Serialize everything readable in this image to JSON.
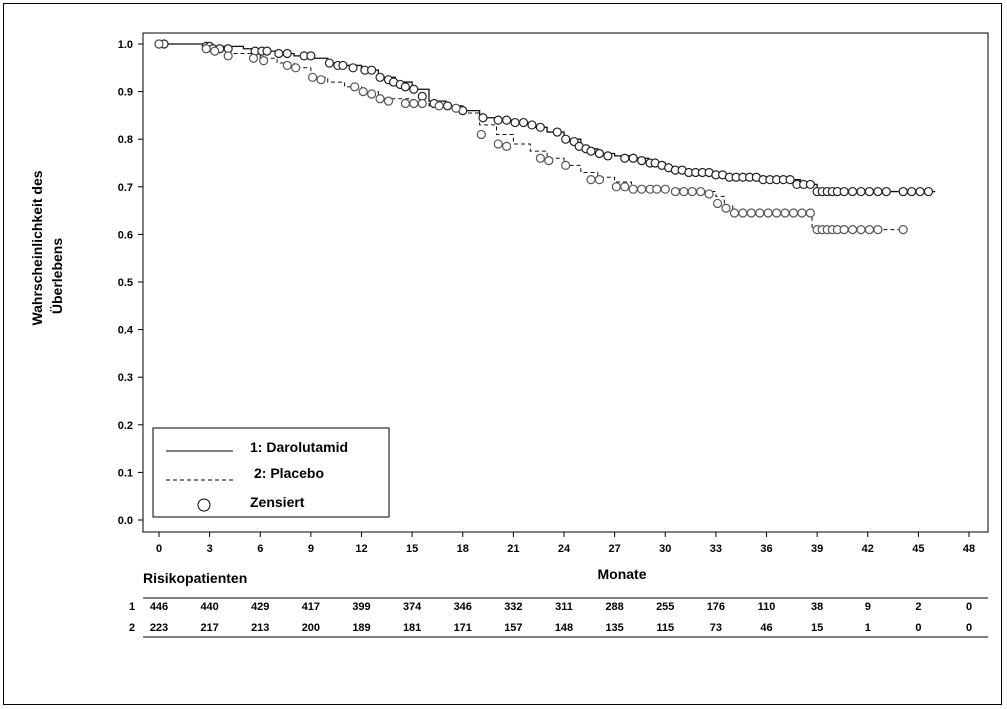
{
  "chart_data": {
    "type": "line",
    "ylabel_line1": "Wahrscheinlichkeit des",
    "ylabel_line2": "Überlebens",
    "xlabel": "Monate",
    "xlim": [
      0,
      48
    ],
    "ylim": [
      0,
      1
    ],
    "x_ticks": [
      0,
      3,
      6,
      9,
      12,
      15,
      18,
      21,
      24,
      27,
      30,
      33,
      36,
      39,
      42,
      45,
      48
    ],
    "y_ticks": [
      "0.0",
      "0.1",
      "0.2",
      "0.3",
      "0.4",
      "0.5",
      "0.6",
      "0.7",
      "0.8",
      "0.9",
      "1.0"
    ],
    "grid": false,
    "legend": {
      "placement": "bottom-left",
      "entries": [
        {
          "label": "1: Darolutamid",
          "style": "solid"
        },
        {
          "label": "2: Placebo",
          "style": "dashed"
        },
        {
          "label": "Zensiert",
          "style": "circle"
        }
      ]
    },
    "series": [
      {
        "name": "1: Darolutamid",
        "line_style": "solid",
        "x": [
          0,
          3,
          5,
          6,
          7,
          8,
          9,
          10,
          11,
          12,
          13,
          14,
          15,
          16,
          17,
          18,
          19,
          20,
          21,
          22,
          23,
          24,
          25,
          26,
          27,
          28,
          29,
          30,
          31,
          32,
          33,
          34,
          35,
          36,
          37,
          38,
          39,
          40,
          41,
          46
        ],
        "y": [
          1.0,
          0.995,
          0.99,
          0.985,
          0.98,
          0.975,
          0.97,
          0.96,
          0.955,
          0.945,
          0.93,
          0.92,
          0.905,
          0.88,
          0.87,
          0.86,
          0.845,
          0.84,
          0.835,
          0.825,
          0.815,
          0.8,
          0.78,
          0.77,
          0.765,
          0.76,
          0.75,
          0.74,
          0.73,
          0.73,
          0.725,
          0.72,
          0.72,
          0.715,
          0.715,
          0.705,
          0.69,
          0.69,
          0.69,
          0.69
        ],
        "censored_x": [
          0,
          0.3,
          2.8,
          3.0,
          3.2,
          3.6,
          4.1,
          5.7,
          6.1,
          6.4,
          7.1,
          7.6,
          8.6,
          9.0,
          10.1,
          10.6,
          10.9,
          11.5,
          12.2,
          12.6,
          13.1,
          13.6,
          13.9,
          14.3,
          14.6,
          15.1,
          15.6,
          16.3,
          17.1,
          18.0,
          19.2,
          20.1,
          20.6,
          21.1,
          21.6,
          22.1,
          22.6,
          23.6,
          24.1,
          24.6,
          24.9,
          25.3,
          25.6,
          26.1,
          26.6,
          27.6,
          28.1,
          28.6,
          29.1,
          29.4,
          29.8,
          30.2,
          30.6,
          31.0,
          31.4,
          31.8,
          32.2,
          32.6,
          33.0,
          33.4,
          33.8,
          34.2,
          34.6,
          35.0,
          35.4,
          35.8,
          36.2,
          36.6,
          37.0,
          37.4,
          37.8,
          38.2,
          38.6,
          39.0,
          39.3,
          39.6,
          39.9,
          40.2,
          40.6,
          41.1,
          41.6,
          42.1,
          42.6,
          43.1,
          44.1,
          44.6,
          45.1,
          45.6
        ],
        "censored_y": [
          1.0,
          1.0,
          0.995,
          0.995,
          0.99,
          0.99,
          0.99,
          0.985,
          0.985,
          0.985,
          0.98,
          0.98,
          0.975,
          0.975,
          0.96,
          0.955,
          0.955,
          0.95,
          0.945,
          0.945,
          0.93,
          0.925,
          0.92,
          0.915,
          0.91,
          0.905,
          0.89,
          0.875,
          0.87,
          0.86,
          0.845,
          0.84,
          0.84,
          0.835,
          0.835,
          0.83,
          0.825,
          0.815,
          0.8,
          0.795,
          0.785,
          0.78,
          0.775,
          0.77,
          0.765,
          0.76,
          0.76,
          0.755,
          0.75,
          0.75,
          0.745,
          0.74,
          0.735,
          0.735,
          0.73,
          0.73,
          0.73,
          0.73,
          0.725,
          0.725,
          0.72,
          0.72,
          0.72,
          0.72,
          0.72,
          0.715,
          0.715,
          0.715,
          0.715,
          0.715,
          0.705,
          0.705,
          0.705,
          0.69,
          0.69,
          0.69,
          0.69,
          0.69,
          0.69,
          0.69,
          0.69,
          0.69,
          0.69,
          0.69,
          0.69,
          0.69,
          0.69,
          0.69
        ]
      },
      {
        "name": "2: Placebo",
        "line_style": "dashed",
        "x": [
          0,
          3,
          4,
          6,
          7,
          8,
          9,
          10,
          11,
          12,
          13,
          15,
          16,
          17,
          18,
          19,
          20,
          21,
          22,
          23,
          24,
          25,
          26,
          27,
          28,
          29,
          30,
          31,
          32,
          33,
          33.5,
          34,
          35,
          36,
          37,
          38,
          38.7,
          39,
          40,
          41,
          44
        ],
        "y": [
          1.0,
          0.99,
          0.98,
          0.97,
          0.96,
          0.95,
          0.93,
          0.92,
          0.91,
          0.9,
          0.885,
          0.875,
          0.87,
          0.865,
          0.855,
          0.83,
          0.81,
          0.79,
          0.775,
          0.76,
          0.745,
          0.73,
          0.72,
          0.71,
          0.7,
          0.695,
          0.695,
          0.69,
          0.69,
          0.68,
          0.66,
          0.645,
          0.645,
          0.645,
          0.645,
          0.645,
          0.61,
          0.61,
          0.61,
          0.61,
          0.61
        ],
        "censored_x": [
          0,
          2.8,
          3.3,
          4.1,
          5.6,
          6.2,
          7.6,
          8.1,
          9.1,
          9.6,
          11.6,
          12.1,
          12.6,
          13.1,
          13.6,
          14.6,
          15.1,
          15.6,
          16.6,
          17.6,
          19.1,
          20.1,
          20.6,
          22.6,
          23.1,
          24.1,
          25.6,
          26.1,
          27.1,
          27.6,
          28.1,
          28.6,
          29.1,
          29.5,
          30.0,
          30.6,
          31.1,
          31.6,
          32.1,
          32.6,
          33.1,
          33.6,
          34.1,
          34.6,
          35.1,
          35.6,
          36.1,
          36.6,
          37.1,
          37.6,
          38.1,
          38.6,
          39.0,
          39.3,
          39.6,
          39.9,
          40.2,
          40.6,
          41.1,
          41.6,
          42.1,
          42.6,
          44.1
        ],
        "censored_y": [
          1.0,
          0.99,
          0.985,
          0.975,
          0.97,
          0.965,
          0.955,
          0.95,
          0.93,
          0.925,
          0.91,
          0.9,
          0.895,
          0.885,
          0.88,
          0.875,
          0.875,
          0.875,
          0.87,
          0.865,
          0.81,
          0.79,
          0.785,
          0.76,
          0.755,
          0.745,
          0.715,
          0.715,
          0.7,
          0.7,
          0.695,
          0.695,
          0.695,
          0.695,
          0.695,
          0.69,
          0.69,
          0.69,
          0.69,
          0.685,
          0.665,
          0.655,
          0.645,
          0.645,
          0.645,
          0.645,
          0.645,
          0.645,
          0.645,
          0.645,
          0.645,
          0.645,
          0.61,
          0.61,
          0.61,
          0.61,
          0.61,
          0.61,
          0.61,
          0.61,
          0.61,
          0.61,
          0.61
        ]
      }
    ],
    "risk_table": {
      "title": "Risikopatienten",
      "time_points": [
        0,
        3,
        6,
        9,
        12,
        15,
        18,
        21,
        24,
        27,
        30,
        33,
        36,
        39,
        42,
        45,
        48
      ],
      "rows": [
        {
          "label": "1",
          "values": [
            "446",
            "440",
            "429",
            "417",
            "399",
            "374",
            "346",
            "332",
            "311",
            "288",
            "255",
            "176",
            "110",
            "38",
            "9",
            "2",
            "0"
          ]
        },
        {
          "label": "2",
          "values": [
            "223",
            "217",
            "213",
            "200",
            "189",
            "181",
            "171",
            "157",
            "148",
            "135",
            "115",
            "73",
            "46",
            "15",
            "1",
            "0",
            "0"
          ]
        }
      ]
    }
  }
}
